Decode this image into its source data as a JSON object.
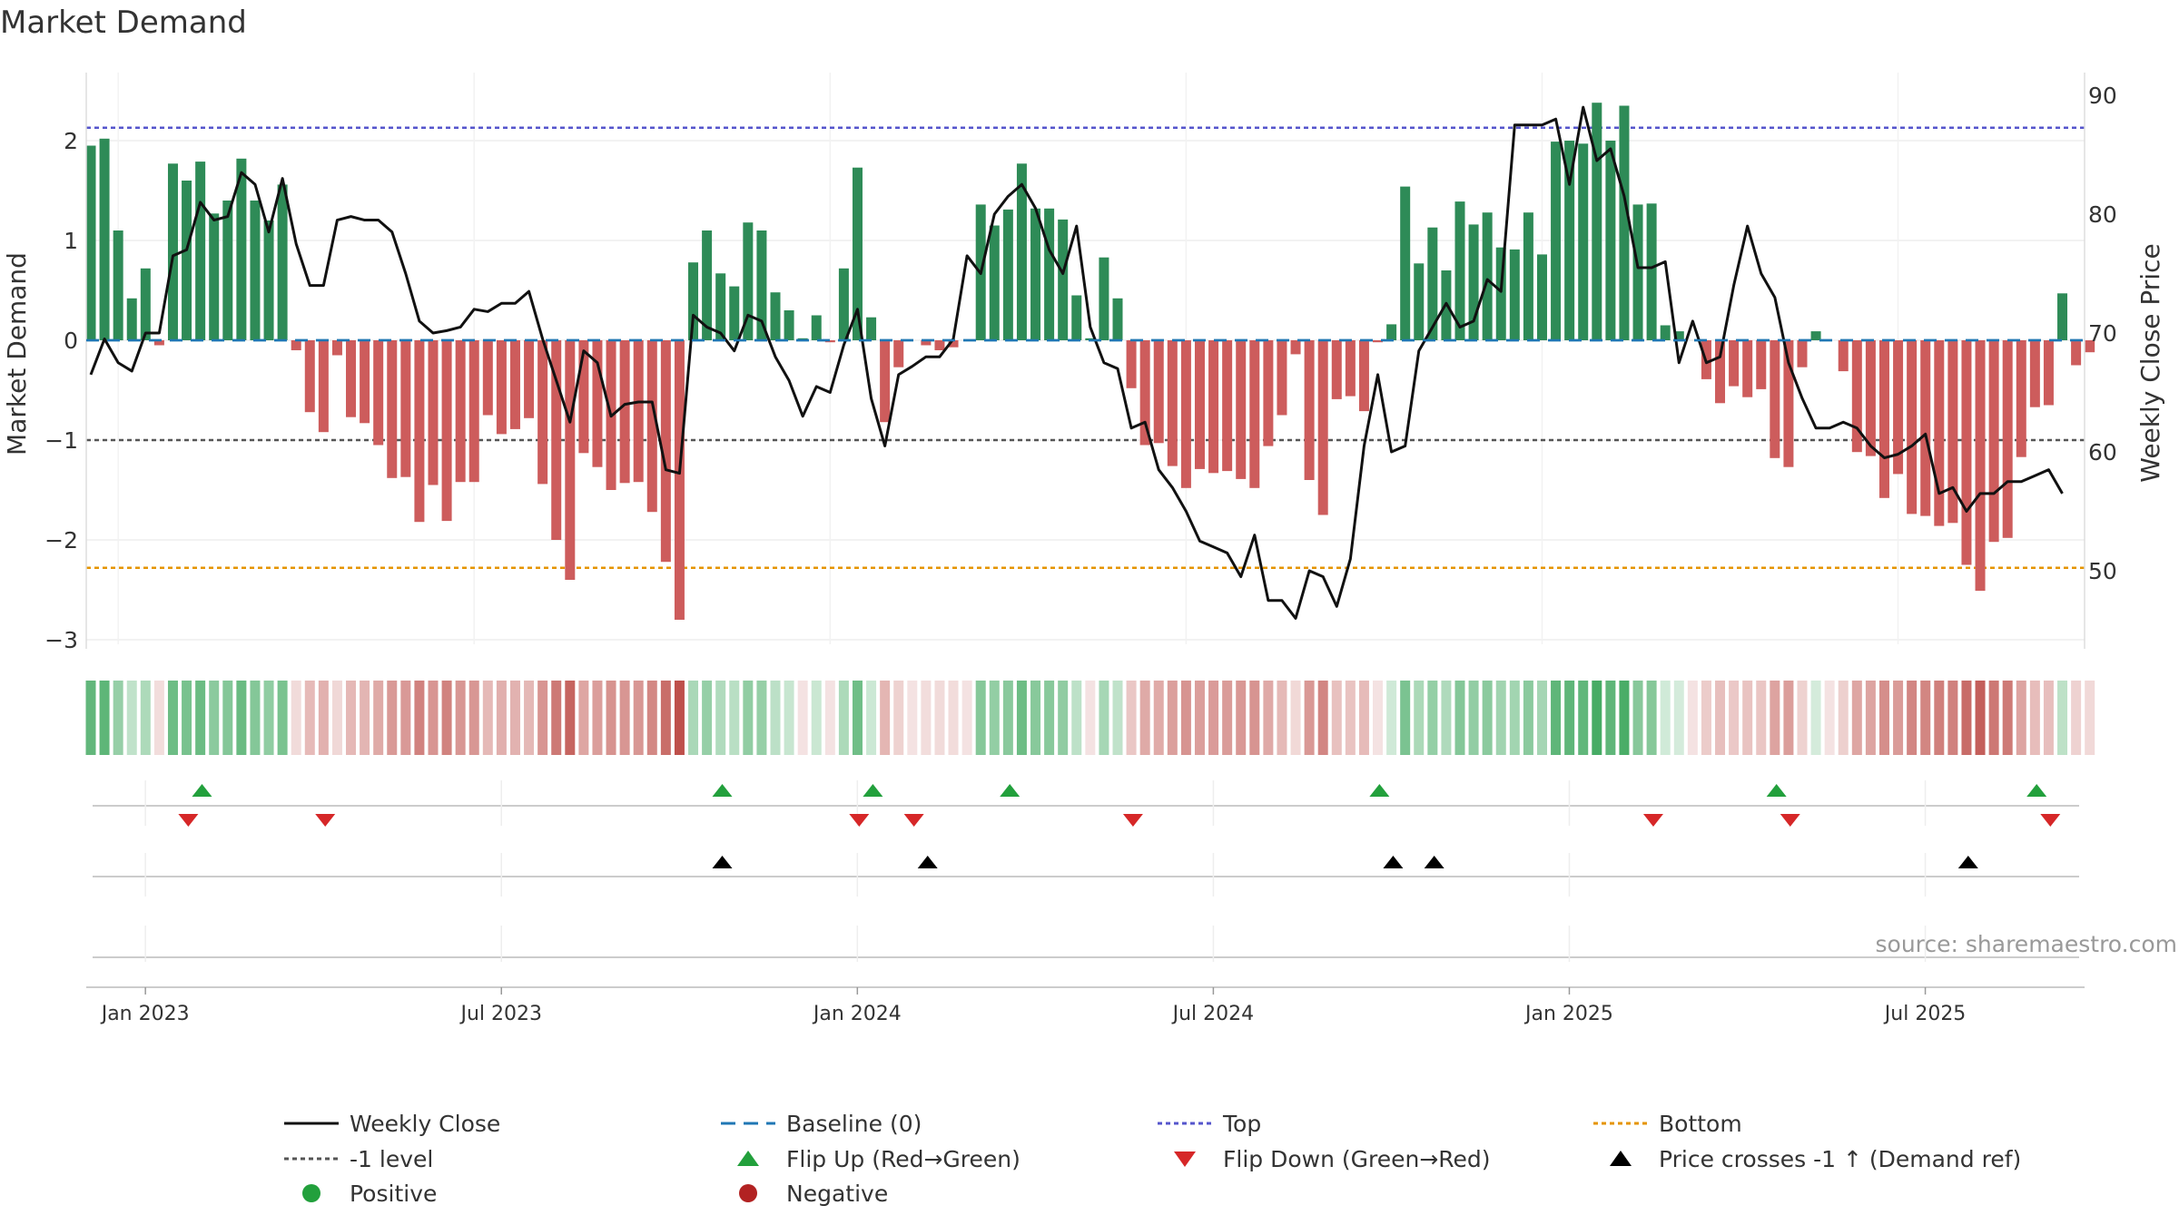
{
  "chart_data": {
    "type": "bar",
    "title": "Market Demand",
    "ylabel": "Market Demand",
    "y2label": "Weekly Close Price",
    "ylim": [
      -3.2,
      2.6
    ],
    "y2lim": [
      43.5,
      92.5
    ],
    "yticks": [
      {
        "v": 2,
        "label": "2"
      },
      {
        "v": 1,
        "label": "1"
      },
      {
        "v": 0,
        "label": "0"
      },
      {
        "v": -1,
        "label": "−1"
      },
      {
        "v": -2,
        "label": "−2"
      },
      {
        "v": -3,
        "label": "−3"
      }
    ],
    "y2ticks": [
      {
        "v": 90,
        "label": "90"
      },
      {
        "v": 80,
        "label": "80"
      },
      {
        "v": 70,
        "label": "70"
      },
      {
        "v": 60,
        "label": "60"
      },
      {
        "v": 50,
        "label": "50"
      }
    ],
    "xticks": [
      {
        "i": 2,
        "label": "Jan 2023"
      },
      {
        "i": 28,
        "label": "Jul 2023"
      },
      {
        "i": 54,
        "label": "Jan 2024"
      },
      {
        "i": 80,
        "label": "Jul 2024"
      },
      {
        "i": 106,
        "label": "Jan 2025"
      },
      {
        "i": 132,
        "label": "Jul 2025"
      }
    ],
    "ref_lines": {
      "top": 2.13,
      "bottom": -2.28,
      "minus_one": -1
    },
    "demand": [
      1.95,
      2.02,
      1.1,
      0.42,
      0.72,
      -0.05,
      1.77,
      1.6,
      1.79,
      1.27,
      1.4,
      1.82,
      1.4,
      1.2,
      1.56,
      -0.1,
      -0.72,
      -0.92,
      -0.15,
      -0.77,
      -0.83,
      -1.05,
      -1.38,
      -1.37,
      -1.82,
      -1.45,
      -1.81,
      -1.42,
      -1.42,
      -0.75,
      -0.94,
      -0.89,
      -0.78,
      -1.44,
      -2.0,
      -2.4,
      -1.13,
      -1.27,
      -1.5,
      -1.43,
      -1.42,
      -1.72,
      -2.22,
      -2.8,
      0.78,
      1.1,
      0.67,
      0.54,
      1.18,
      1.1,
      0.48,
      0.3,
      0.02,
      0.25,
      -0.02,
      0.72,
      1.73,
      0.23,
      -0.82,
      -0.27,
      0.0,
      -0.05,
      -0.1,
      -0.07,
      0.0,
      1.36,
      1.15,
      1.31,
      1.77,
      1.32,
      1.32,
      1.21,
      0.45,
      0.02,
      0.83,
      0.42,
      -0.48,
      -1.05,
      -1.03,
      -1.26,
      -1.48,
      -1.29,
      -1.33,
      -1.31,
      -1.39,
      -1.48,
      -1.06,
      -0.75,
      -0.14,
      -1.4,
      -1.75,
      -0.59,
      -0.56,
      -0.71,
      -0.02,
      0.16,
      1.54,
      0.77,
      1.13,
      0.7,
      1.39,
      1.16,
      1.28,
      0.93,
      0.91,
      1.28,
      0.86,
      1.99,
      2.0,
      1.97,
      2.38,
      2.0,
      2.35,
      1.36,
      1.37,
      0.15,
      0.09,
      0.0,
      -0.39,
      -0.63,
      -0.46,
      -0.57,
      -0.49,
      -1.18,
      -1.27,
      -0.27,
      0.09,
      0.0,
      -0.31,
      -1.12,
      -1.16,
      -1.58,
      -1.34,
      -1.74,
      -1.76,
      -1.86,
      -1.83,
      -2.25,
      -2.51,
      -2.02,
      -1.98,
      -1.17,
      -0.67,
      -0.65,
      0.47,
      -0.25,
      -0.12
    ],
    "close": [
      66.5,
      69.5,
      67.5,
      66.8,
      70.0,
      70.0,
      76.5,
      77.0,
      81.0,
      79.5,
      79.8,
      83.5,
      82.5,
      78.5,
      83.0,
      77.5,
      74.0,
      74.0,
      79.5,
      79.8,
      79.5,
      79.5,
      78.5,
      75.0,
      71.0,
      70.0,
      70.2,
      70.5,
      72.0,
      71.8,
      72.5,
      72.5,
      73.5,
      69.5,
      66.0,
      62.5,
      68.5,
      67.5,
      63.0,
      64.0,
      64.2,
      64.2,
      58.5,
      58.2,
      71.5,
      70.5,
      70.0,
      68.5,
      71.5,
      71.0,
      68.0,
      66.0,
      63.0,
      65.5,
      65.0,
      69.0,
      72.0,
      64.5,
      60.5,
      66.5,
      67.2,
      68.0,
      68.0,
      69.5,
      76.5,
      75.0,
      80.0,
      81.5,
      82.5,
      80.5,
      77.0,
      75.0,
      79.0,
      70.5,
      67.5,
      67.0,
      62.0,
      62.5,
      58.5,
      57.0,
      55.0,
      52.5,
      52.0,
      51.5,
      49.5,
      53.0,
      47.5,
      47.5,
      46.0,
      50.0,
      49.5,
      47.0,
      51.0,
      60.5,
      66.5,
      60.0,
      60.5,
      68.5,
      70.5,
      72.5,
      70.5,
      71.0,
      74.5,
      73.5,
      87.5,
      87.5,
      87.5,
      88.0,
      82.5,
      89.0,
      84.5,
      85.5,
      81.5,
      75.5,
      75.5,
      76.0,
      67.5,
      71.0,
      67.5,
      68.0,
      74.0,
      79.0,
      75.0,
      73.0,
      67.5,
      64.5,
      62.0,
      62.0,
      62.5,
      62.0,
      60.5,
      59.5,
      59.8,
      60.5,
      61.5,
      56.5,
      57.0,
      55.0,
      56.5,
      56.5,
      57.5,
      57.5,
      58.0,
      58.5,
      56.5
    ],
    "flip_up": [
      6,
      44,
      55,
      65,
      92,
      121,
      140
    ],
    "flip_down": [
      5,
      15,
      54,
      58,
      74,
      112,
      122,
      141
    ],
    "price_cross": [
      44,
      59,
      93,
      96,
      135
    ],
    "legend": [
      {
        "key": "weekly_close",
        "label": "Weekly Close"
      },
      {
        "key": "baseline",
        "label": "Baseline (0)"
      },
      {
        "key": "top",
        "label": "Top"
      },
      {
        "key": "bottom",
        "label": "Bottom"
      },
      {
        "key": "minus_one",
        "label": "-1 level"
      },
      {
        "key": "flip_up",
        "label": "Flip Up (Red→Green)"
      },
      {
        "key": "flip_down",
        "label": "Flip Down (Green→Red)"
      },
      {
        "key": "price_cross",
        "label": "Price crosses -1 ↑ (Demand ref)"
      },
      {
        "key": "positive",
        "label": "Positive"
      },
      {
        "key": "negative",
        "label": "Negative"
      }
    ],
    "source": "source: sharemaestro.com"
  },
  "colors": {
    "positive_bar": "#2e8b57",
    "negative_bar": "#cd5c5c",
    "line": "#111111",
    "baseline": "#1f77b4",
    "top": "#5555cc",
    "bottom": "#e59400",
    "minus_one": "#555555",
    "flip_up": "#22a03c",
    "flip_down": "#d62728",
    "price_cross": "#000000",
    "positive_dot": "#22a03c",
    "negative_dot": "#b22222"
  }
}
